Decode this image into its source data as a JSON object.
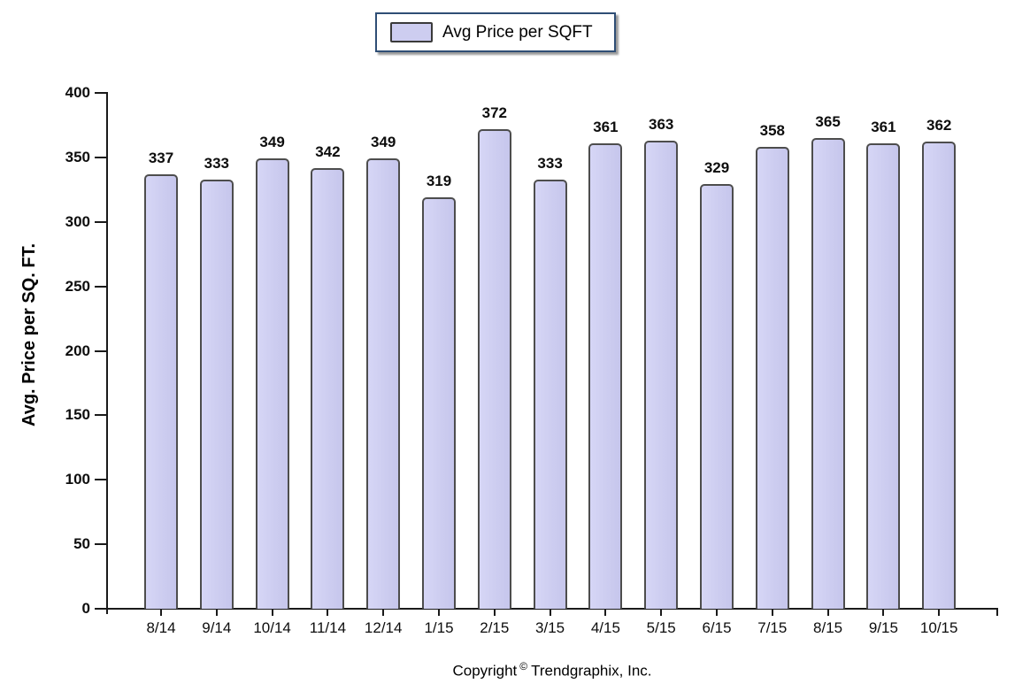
{
  "legend": {
    "label": "Avg Price per SQFT"
  },
  "chart_data": {
    "type": "bar",
    "title": "",
    "legend_entries": [
      "Avg Price per SQFT"
    ],
    "legend_position": "top-center",
    "categories": [
      "8/14",
      "9/14",
      "10/14",
      "11/14",
      "12/14",
      "1/15",
      "2/15",
      "3/15",
      "4/15",
      "5/15",
      "6/15",
      "7/15",
      "8/15",
      "9/15",
      "10/15"
    ],
    "values": [
      337,
      333,
      349,
      342,
      349,
      319,
      372,
      333,
      361,
      363,
      329,
      358,
      365,
      361,
      362
    ],
    "xlabel": "",
    "ylabel": "Avg. Price per SQ. FT.",
    "ylim": [
      0,
      400
    ],
    "yticks": [
      0,
      50,
      100,
      150,
      200,
      250,
      300,
      350,
      400
    ],
    "grid": false,
    "value_labels_shown": true
  },
  "footer": {
    "copyright_prefix": "Copyright",
    "copyright_symbol": "©",
    "copyright_owner": "Trendgraphix, Inc."
  },
  "colors": {
    "background": "#ffffff",
    "bar_fill": "#cdcdf0",
    "bar_border": "#4d4d4d",
    "legend_border": "#2f4e75",
    "axis": "#1a1a1a",
    "text": "#000000"
  }
}
